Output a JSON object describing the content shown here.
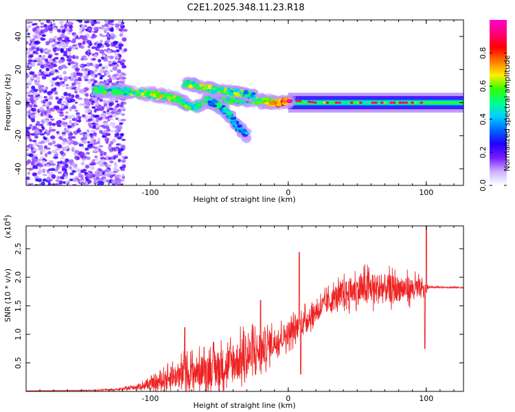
{
  "figure": {
    "title": "C2E1.2025.348.11.23.R18"
  },
  "chart_data": [
    {
      "type": "heatmap",
      "name": "spectrogram",
      "xlabel": "Height of straight line (km)",
      "ylabel": "Frequency (Hz)",
      "xlim": [
        -190,
        127
      ],
      "ylim": [
        -50,
        50
      ],
      "xticks": [
        -100,
        0,
        100
      ],
      "yticks": [
        -40,
        -20,
        0,
        20,
        40
      ],
      "colorbar": {
        "label": "Normalized spectral amplitude",
        "range": [
          0,
          1
        ],
        "ticks": [
          "0.0",
          "0.2",
          "0.4",
          "0.6",
          "0.8"
        ],
        "tick_values": [
          0,
          0.2,
          0.4,
          0.6,
          0.8
        ],
        "colormap": [
          "#ffffff",
          "#cbb3ff",
          "#7a1aff",
          "#2200ff",
          "#0066ff",
          "#00d0ff",
          "#00ff88",
          "#33ff00",
          "#ffee00",
          "#ff7700",
          "#ff0000",
          "#ff0077",
          "#ff00cc"
        ]
      },
      "noise_region_x": [
        -190,
        -120
      ],
      "main_track": [
        {
          "x": -140,
          "f": 8,
          "a": 0.45
        },
        {
          "x": -125,
          "f": 7,
          "a": 0.5
        },
        {
          "x": -110,
          "f": 6,
          "a": 0.55
        },
        {
          "x": -100,
          "f": 5,
          "a": 0.55
        },
        {
          "x": -90,
          "f": 4,
          "a": 0.6
        },
        {
          "x": -80,
          "f": 2,
          "a": 0.55
        },
        {
          "x": -70,
          "f": -3,
          "a": 0.5
        },
        {
          "x": -60,
          "f": 0,
          "a": 0.45
        },
        {
          "x": -50,
          "f": 1,
          "a": 0.45
        },
        {
          "x": -40,
          "f": 2,
          "a": 0.45
        },
        {
          "x": -30,
          "f": 2,
          "a": 0.45
        },
        {
          "x": -20,
          "f": 1,
          "a": 0.6
        },
        {
          "x": -10,
          "f": 0,
          "a": 0.75
        },
        {
          "x": 0,
          "f": 1,
          "a": 0.85
        },
        {
          "x": 10,
          "f": 1,
          "a": 0.9
        },
        {
          "x": 20,
          "f": 0,
          "a": 0.95
        },
        {
          "x": 40,
          "f": 0,
          "a": 0.95
        },
        {
          "x": 60,
          "f": 0,
          "a": 0.95
        },
        {
          "x": 80,
          "f": 0,
          "a": 0.95
        },
        {
          "x": 100,
          "f": 0,
          "a": 0.9
        },
        {
          "x": 127,
          "f": 0,
          "a": 0.85
        }
      ],
      "upper_branch": [
        {
          "x": -75,
          "f": 12,
          "a": 0.5
        },
        {
          "x": -65,
          "f": 10,
          "a": 0.55
        },
        {
          "x": -55,
          "f": 8,
          "a": 0.55
        },
        {
          "x": -45,
          "f": 7,
          "a": 0.55
        },
        {
          "x": -35,
          "f": 6,
          "a": 0.5
        },
        {
          "x": -25,
          "f": 4,
          "a": 0.45
        }
      ],
      "lower_branch": [
        {
          "x": -60,
          "f": 2,
          "a": 0.45
        },
        {
          "x": -50,
          "f": -2,
          "a": 0.4
        },
        {
          "x": -42,
          "f": -8,
          "a": 0.4
        },
        {
          "x": -36,
          "f": -15,
          "a": 0.35
        },
        {
          "x": -30,
          "f": -20,
          "a": 0.3
        },
        {
          "x": -45,
          "f": -14,
          "a": 0.3
        }
      ]
    },
    {
      "type": "line",
      "name": "snr",
      "xlabel": "Height of straight line (km)",
      "ylabel": "SNR (10 * v/v)",
      "multiplier_label": "(x10",
      "multiplier_exp": "4",
      "xlim": [
        -190,
        127
      ],
      "ylim": [
        0,
        2.9
      ],
      "xticks": [
        -100,
        0,
        100
      ],
      "yticks": [
        "0.5",
        "1.0",
        "1.5",
        "2.0",
        "2.5"
      ],
      "ytick_values": [
        0.5,
        1.0,
        1.5,
        2.0,
        2.5
      ],
      "color": "#ee2222",
      "envelope": [
        {
          "x": -190,
          "base": 0.01,
          "amp": 0.0
        },
        {
          "x": -140,
          "base": 0.02,
          "amp": 0.01
        },
        {
          "x": -120,
          "base": 0.04,
          "amp": 0.03
        },
        {
          "x": -105,
          "base": 0.1,
          "amp": 0.1
        },
        {
          "x": -95,
          "base": 0.15,
          "amp": 0.2
        },
        {
          "x": -85,
          "base": 0.25,
          "amp": 0.3
        },
        {
          "x": -75,
          "base": 0.3,
          "amp": 0.45
        },
        {
          "x": -65,
          "base": 0.35,
          "amp": 0.45
        },
        {
          "x": -55,
          "base": 0.4,
          "amp": 0.5
        },
        {
          "x": -45,
          "base": 0.45,
          "amp": 0.55
        },
        {
          "x": -35,
          "base": 0.55,
          "amp": 0.6
        },
        {
          "x": -25,
          "base": 0.65,
          "amp": 0.65
        },
        {
          "x": -15,
          "base": 0.8,
          "amp": 0.45
        },
        {
          "x": -5,
          "base": 0.95,
          "amp": 0.35
        },
        {
          "x": 5,
          "base": 1.1,
          "amp": 0.35
        },
        {
          "x": 15,
          "base": 1.3,
          "amp": 0.3
        },
        {
          "x": 25,
          "base": 1.5,
          "amp": 0.3
        },
        {
          "x": 35,
          "base": 1.65,
          "amp": 0.35
        },
        {
          "x": 45,
          "base": 1.75,
          "amp": 0.4
        },
        {
          "x": 55,
          "base": 1.8,
          "amp": 0.45
        },
        {
          "x": 65,
          "base": 1.8,
          "amp": 0.45
        },
        {
          "x": 75,
          "base": 1.8,
          "amp": 0.4
        },
        {
          "x": 85,
          "base": 1.8,
          "amp": 0.35
        },
        {
          "x": 95,
          "base": 1.8,
          "amp": 0.3
        },
        {
          "x": 99,
          "base": 1.75,
          "amp": 0.2
        },
        {
          "x": 102,
          "base": 1.83,
          "amp": 0.02
        },
        {
          "x": 127,
          "base": 1.82,
          "amp": 0.02
        }
      ],
      "spikes": [
        {
          "x": -75,
          "y": 1.12
        },
        {
          "x": -20,
          "y": 1.6
        },
        {
          "x": 8,
          "y": 2.44
        },
        {
          "x": 9,
          "y": 0.3
        },
        {
          "x": 100,
          "y": 2.9
        },
        {
          "x": 99,
          "y": 0.75
        }
      ]
    }
  ]
}
